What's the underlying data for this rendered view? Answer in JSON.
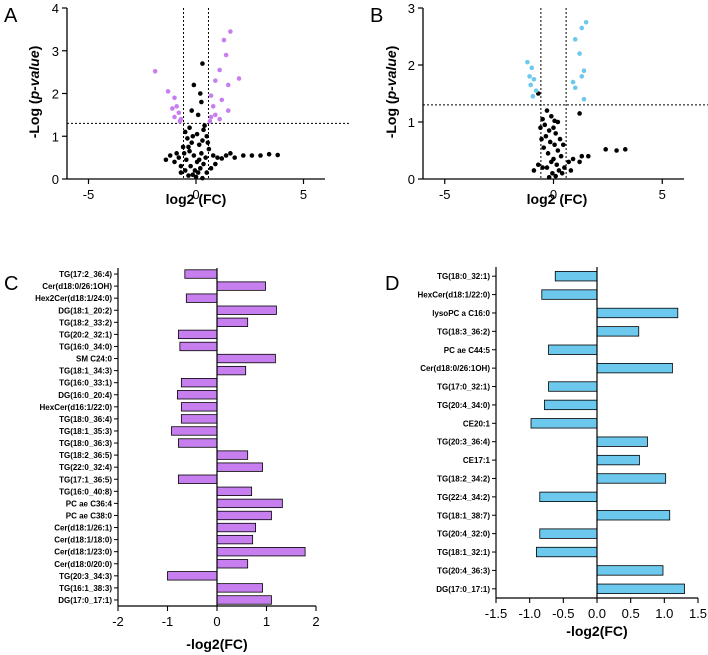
{
  "colors": {
    "purple": "#c77ff0",
    "purple_bar": "#c77ff0",
    "blue": "#6cc8ec",
    "blue_bar": "#6cc8ec",
    "black": "#000000"
  },
  "chart_data": [
    {
      "type": "scatter",
      "panel": "A",
      "xlabel": "log2 (FC)",
      "ylabel_parts": [
        "-Log (",
        "p-value",
        ")"
      ],
      "xlim": [
        -6,
        6
      ],
      "ylim": [
        0,
        4
      ],
      "xticks": [
        -5,
        0,
        5
      ],
      "yticks": [
        0,
        1,
        2,
        3,
        4
      ],
      "xticklabels": [
        "-5",
        "0",
        "5"
      ],
      "yticklabels": [
        "0",
        "1",
        "2",
        "3",
        "4"
      ],
      "vlines": [
        -0.58,
        0.58
      ],
      "hline": 1.3,
      "highlight": [
        [
          -1.9,
          2.52
        ],
        [
          -1.3,
          2.05
        ],
        [
          -1.0,
          1.9
        ],
        [
          -0.9,
          1.7
        ],
        [
          -1.1,
          1.65
        ],
        [
          -0.8,
          1.55
        ],
        [
          -1.0,
          1.45
        ],
        [
          -0.7,
          1.4
        ],
        [
          -0.75,
          1.35
        ],
        [
          1.6,
          3.45
        ],
        [
          1.3,
          3.25
        ],
        [
          1.4,
          2.9
        ],
        [
          1.1,
          2.55
        ],
        [
          2.0,
          2.35
        ],
        [
          1.5,
          2.2
        ],
        [
          0.9,
          2.3
        ],
        [
          0.7,
          1.95
        ],
        [
          1.2,
          1.85
        ],
        [
          0.8,
          1.7
        ],
        [
          1.5,
          1.6
        ],
        [
          0.9,
          1.5
        ],
        [
          0.7,
          1.45
        ],
        [
          1.1,
          1.4
        ],
        [
          0.65,
          1.35
        ]
      ],
      "points": [
        [
          -0.1,
          2.2
        ],
        [
          0.3,
          2.7
        ],
        [
          0.2,
          2.0
        ],
        [
          -0.2,
          1.6
        ],
        [
          0.1,
          1.5
        ],
        [
          -0.3,
          1.2
        ],
        [
          0.4,
          1.25
        ],
        [
          -0.5,
          1.1
        ],
        [
          0.5,
          1.0
        ],
        [
          -0.4,
          0.95
        ],
        [
          0.3,
          0.9
        ],
        [
          -0.2,
          0.85
        ],
        [
          0.15,
          0.8
        ],
        [
          -0.6,
          0.75
        ],
        [
          0.6,
          0.7
        ],
        [
          -0.3,
          0.65
        ],
        [
          0.25,
          0.6
        ],
        [
          -0.1,
          0.55
        ],
        [
          0.45,
          0.5
        ],
        [
          -0.45,
          0.45
        ],
        [
          0.05,
          0.4
        ],
        [
          0.35,
          0.35
        ],
        [
          -0.25,
          0.3
        ],
        [
          0.2,
          0.25
        ],
        [
          -0.05,
          0.2
        ],
        [
          0.1,
          0.15
        ],
        [
          -0.15,
          0.1
        ],
        [
          0.0,
          0.05
        ],
        [
          0.3,
          0.02
        ],
        [
          -0.35,
          0.08
        ],
        [
          -0.8,
          0.5
        ],
        [
          -1.0,
          0.4
        ],
        [
          -0.9,
          0.6
        ],
        [
          -1.2,
          0.55
        ],
        [
          -0.7,
          0.3
        ],
        [
          -1.4,
          0.45
        ],
        [
          0.8,
          0.55
        ],
        [
          1.0,
          0.5
        ],
        [
          1.2,
          0.48
        ],
        [
          0.9,
          0.35
        ],
        [
          1.4,
          0.55
        ],
        [
          1.6,
          0.6
        ],
        [
          1.8,
          0.5
        ],
        [
          2.2,
          0.55
        ],
        [
          2.6,
          0.55
        ],
        [
          3.0,
          0.55
        ],
        [
          3.4,
          0.58
        ],
        [
          3.8,
          0.56
        ],
        [
          -0.5,
          0.2
        ],
        [
          0.5,
          0.15
        ],
        [
          -0.15,
          1.0
        ],
        [
          0.05,
          1.05
        ],
        [
          0.35,
          1.15
        ],
        [
          -0.35,
          0.75
        ],
        [
          0.15,
          0.45
        ],
        [
          -0.55,
          0.6
        ],
        [
          0.55,
          0.85
        ],
        [
          0.7,
          0.25
        ],
        [
          -0.7,
          0.15
        ],
        [
          0.25,
          1.8
        ]
      ]
    },
    {
      "type": "scatter",
      "panel": "B",
      "xlabel": "log2 (FC)",
      "ylabel_parts": [
        "-Log (",
        "p-value",
        ")"
      ],
      "xlim": [
        -6,
        6
      ],
      "ylim": [
        0,
        3
      ],
      "xticks": [
        -5,
        0,
        5
      ],
      "yticks": [
        0,
        1,
        2,
        3
      ],
      "xticklabels": [
        "-5",
        "0",
        "5"
      ],
      "yticklabels": [
        "0",
        "1",
        "2",
        "3"
      ],
      "vlines": [
        -0.58,
        0.58
      ],
      "hline": 1.3,
      "highlight": [
        [
          -1.2,
          2.05
        ],
        [
          -1.0,
          1.95
        ],
        [
          -1.1,
          1.8
        ],
        [
          -0.9,
          1.75
        ],
        [
          -1.05,
          1.65
        ],
        [
          -0.8,
          1.55
        ],
        [
          -0.95,
          1.45
        ],
        [
          1.5,
          2.75
        ],
        [
          1.3,
          2.65
        ],
        [
          1.0,
          2.45
        ],
        [
          1.2,
          2.2
        ],
        [
          1.4,
          1.9
        ],
        [
          1.3,
          1.8
        ],
        [
          0.9,
          1.7
        ],
        [
          1.0,
          1.6
        ],
        [
          1.4,
          1.4
        ]
      ],
      "points": [
        [
          -0.7,
          1.5
        ],
        [
          -0.3,
          1.2
        ],
        [
          -0.5,
          1.05
        ],
        [
          -0.1,
          1.1
        ],
        [
          0.2,
          1.0
        ],
        [
          -0.4,
          0.95
        ],
        [
          0.0,
          0.9
        ],
        [
          -0.2,
          0.85
        ],
        [
          0.1,
          0.8
        ],
        [
          -0.35,
          0.75
        ],
        [
          0.3,
          0.7
        ],
        [
          -0.15,
          0.65
        ],
        [
          0.05,
          0.6
        ],
        [
          -0.45,
          0.55
        ],
        [
          0.2,
          0.5
        ],
        [
          -0.25,
          0.45
        ],
        [
          0.35,
          0.4
        ],
        [
          0.0,
          0.35
        ],
        [
          -0.1,
          0.3
        ],
        [
          0.15,
          0.25
        ],
        [
          -0.3,
          0.2
        ],
        [
          0.25,
          0.15
        ],
        [
          -0.05,
          0.1
        ],
        [
          0.1,
          0.05
        ],
        [
          -0.2,
          0.03
        ],
        [
          0.4,
          0.1
        ],
        [
          -0.5,
          0.2
        ],
        [
          0.5,
          0.2
        ],
        [
          0.7,
          0.3
        ],
        [
          0.9,
          0.35
        ],
        [
          1.2,
          0.3
        ],
        [
          0.8,
          0.15
        ],
        [
          -0.7,
          0.25
        ],
        [
          -0.9,
          0.15
        ],
        [
          1.6,
          0.4
        ],
        [
          1.3,
          0.4
        ],
        [
          1.2,
          1.15
        ],
        [
          2.4,
          0.52
        ],
        [
          2.9,
          0.5
        ],
        [
          3.3,
          0.52
        ],
        [
          0.45,
          0.6
        ],
        [
          -0.55,
          0.7
        ],
        [
          0.05,
          1.02
        ],
        [
          -0.6,
          0.9
        ]
      ]
    },
    {
      "type": "bar",
      "orientation": "horizontal",
      "panel": "C",
      "xlabel": "-log2(FC)",
      "xlim": [
        -2,
        2
      ],
      "xticks": [
        -2,
        -1,
        0,
        1,
        2
      ],
      "xticklabels": [
        "-2",
        "-1",
        "0",
        "1",
        "2"
      ],
      "categories": [
        "TG(17:2_36:4)",
        "Cer(d18:0/26:1OH)",
        "Hex2Cer(d18:1/24:0)",
        "DG(18:1_20:2)",
        "TG(18:2_33:2)",
        "TG(20:2_32:1)",
        "TG(16:0_34:0)",
        "SM C24:0",
        "TG(18:1_34:3)",
        "TG(16:0_33:1)",
        "DG(16:0_20:4)",
        "HexCer(d16:1/22:0)",
        "TG(18:0_36:4)",
        "TG(18:1_35:3)",
        "TG(18:0_36:3)",
        "TG(18:2_36:5)",
        "TG(22:0_32:4)",
        "TG(17:1_36:5)",
        "TG(16:0_40:8)",
        "PC ae C36:4",
        "PC ae C38:0",
        "Cer(d18:1/26:1)",
        "Cer(d18:1/18:0)",
        "Cer(d18:1/23:0)",
        "Cer(d18:0/20:0)",
        "TG(20:3_34:3)",
        "TG(16:1_38:3)",
        "DG(17:0_17:1)"
      ],
      "values": [
        -0.65,
        0.98,
        -0.62,
        1.2,
        0.62,
        -0.78,
        -0.75,
        1.18,
        0.58,
        -0.72,
        -0.8,
        -0.72,
        -0.72,
        -0.92,
        -0.78,
        0.62,
        0.92,
        -0.78,
        0.7,
        1.32,
        1.1,
        0.78,
        0.72,
        1.78,
        0.62,
        -1.0,
        0.92,
        1.1
      ]
    },
    {
      "type": "bar",
      "orientation": "horizontal",
      "panel": "D",
      "xlabel": "-log2(FC)",
      "xlim": [
        -1.5,
        1.5
      ],
      "xticks": [
        -1.5,
        -1.0,
        -0.5,
        0.0,
        0.5,
        1.0,
        1.5
      ],
      "xticklabels": [
        "-1.5",
        "-1.0",
        "-0.5",
        "0.0",
        "0.5",
        "1.0",
        "1.5"
      ],
      "categories": [
        "TG(18:0_32:1)",
        "HexCer(d18:1/22:0)",
        "lysoPC a C16:0",
        "TG(18:3_36:2)",
        "PC ae C44:5",
        "Cer(d18:0/26:1OH)",
        "TG(17:0_32:1)",
        "TG(20:4_34:0)",
        "CE20:1",
        "TG(20:3_36:4)",
        "CE17:1",
        "TG(18:2_34:2)",
        "TG(22:4_34:2)",
        "TG(18:1_38:7)",
        "TG(20:4_32:0)",
        "TG(18:1_32:1)",
        "TG(20:4_36:3)",
        "DG(17:0_17:1)"
      ],
      "values": [
        -0.62,
        -0.82,
        1.2,
        0.62,
        -0.72,
        1.12,
        -0.72,
        -0.78,
        -0.98,
        0.75,
        0.63,
        1.02,
        -0.85,
        1.08,
        -0.85,
        -0.9,
        0.98,
        1.3
      ]
    }
  ]
}
